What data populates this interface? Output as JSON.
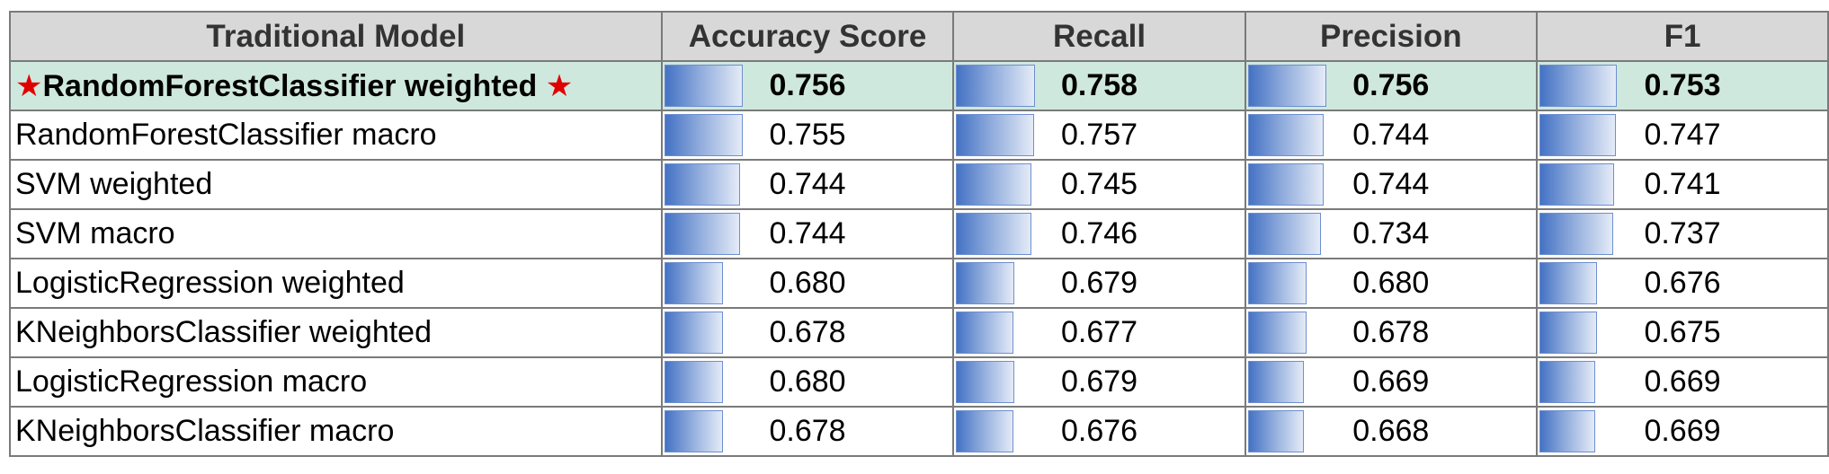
{
  "chart_data": {
    "type": "table",
    "columns": [
      "Traditional Model",
      "Accuracy Score",
      "Recall",
      "Precision",
      "F1"
    ],
    "metric_keys": [
      "accuracy",
      "recall",
      "precision",
      "f1"
    ],
    "bar_color": "#4472c4",
    "highlight_color": "#cfe8de",
    "rows": [
      {
        "model": "RandomForestClassifier weighted",
        "highlight": true,
        "star_marker": "★",
        "accuracy": "0.756",
        "recall": "0.758",
        "precision": "0.756",
        "f1": "0.753"
      },
      {
        "model": "RandomForestClassifier macro",
        "accuracy": "0.755",
        "recall": "0.757",
        "precision": "0.744",
        "f1": "0.747"
      },
      {
        "model": "SVM weighted",
        "accuracy": "0.744",
        "recall": "0.745",
        "precision": "0.744",
        "f1": "0.741"
      },
      {
        "model": "SVM macro",
        "accuracy": "0.744",
        "recall": "0.746",
        "precision": "0.734",
        "f1": "0.737"
      },
      {
        "model": "LogisticRegression weighted",
        "accuracy": "0.680",
        "recall": "0.679",
        "precision": "0.680",
        "f1": "0.676"
      },
      {
        "model": "KNeighborsClassifier weighted",
        "accuracy": "0.678",
        "recall": "0.677",
        "precision": "0.678",
        "f1": "0.675"
      },
      {
        "model": "LogisticRegression macro",
        "accuracy": "0.680",
        "recall": "0.679",
        "precision": "0.669",
        "f1": "0.669"
      },
      {
        "model": "KNeighborsClassifier macro",
        "accuracy": "0.678",
        "recall": "0.676",
        "precision": "0.668",
        "f1": "0.669"
      }
    ]
  }
}
